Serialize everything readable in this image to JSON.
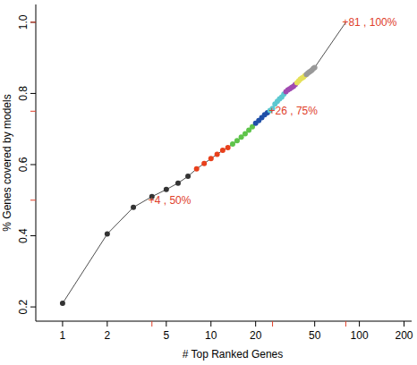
{
  "chart_data": {
    "type": "line",
    "x_label": "# Top Ranked Genes",
    "y_label": "% Genes covered by models",
    "log": "x",
    "marker": "circle",
    "x": [
      1,
      2,
      3,
      4,
      5,
      6,
      7,
      8,
      9,
      10,
      11,
      12,
      13,
      14,
      15,
      16,
      17,
      18,
      19,
      20,
      21,
      22,
      23,
      24,
      25,
      26,
      27,
      28,
      29,
      30,
      31,
      32,
      33,
      34,
      35,
      36,
      37,
      38,
      39,
      40,
      41,
      42,
      43,
      44,
      45,
      46,
      47,
      48,
      49,
      50,
      81
    ],
    "values": [
      0.21,
      0.405,
      0.48,
      0.51,
      0.53,
      0.548,
      0.567,
      0.588,
      0.603,
      0.617,
      0.629,
      0.64,
      0.648,
      0.658,
      0.667,
      0.677,
      0.687,
      0.697,
      0.706,
      0.716,
      0.724,
      0.732,
      0.74,
      0.746,
      0.752,
      0.758,
      0.77,
      0.778,
      0.785,
      0.79,
      0.798,
      0.805,
      0.81,
      0.813,
      0.817,
      0.82,
      0.825,
      0.83,
      0.835,
      0.84,
      0.843,
      0.846,
      0.85,
      0.853,
      0.857,
      0.86,
      0.863,
      0.866,
      0.87,
      0.873,
      1.0
    ],
    "colors": [
      "#333333",
      "#333333",
      "#333333",
      "#333333",
      "#333333",
      "#333333",
      "#333333",
      "#e8401c",
      "#e8401c",
      "#e8401c",
      "#e8401c",
      "#e8401c",
      "#e8401c",
      "#5ec44a",
      "#5ec44a",
      "#5ec44a",
      "#5ec44a",
      "#5ec44a",
      "#5ec44a",
      "#1f4fa8",
      "#1f4fa8",
      "#1f4fa8",
      "#1f4fa8",
      "#1f4fa8",
      "#5bc8d0",
      "#5bc8d0",
      "#5bc8d0",
      "#5bc8d0",
      "#5bc8d0",
      "#5bc8d0",
      "#5bc8d0",
      "#a04ab0",
      "#a04ab0",
      "#a04ab0",
      "#a04ab0",
      "#a04ab0",
      "#a04ab0",
      "#e5e05a",
      "#e5e05a",
      "#e5e05a",
      "#e5e05a",
      "#e5e05a",
      "#e5e05a",
      "#999999",
      "#999999",
      "#999999",
      "#999999",
      "#999999",
      "#999999",
      "#999999",
      null
    ],
    "xlim": [
      0.66,
      225
    ],
    "ylim": [
      0.16,
      1.05
    ],
    "xticks": [
      1,
      2,
      5,
      10,
      20,
      50,
      100,
      200
    ],
    "yticks": [
      0.2,
      0.4,
      0.6,
      0.8,
      {
        "value": 1,
        "label": "1.0"
      }
    ],
    "annotations": [
      {
        "text": "+4 , 50%",
        "x": 4,
        "y": 0.5
      },
      {
        "text": "+26 , 75%",
        "x": 26,
        "y": 0.75
      },
      {
        "text": "+81 , 100%",
        "x": 81,
        "y": 1.0
      }
    ]
  }
}
